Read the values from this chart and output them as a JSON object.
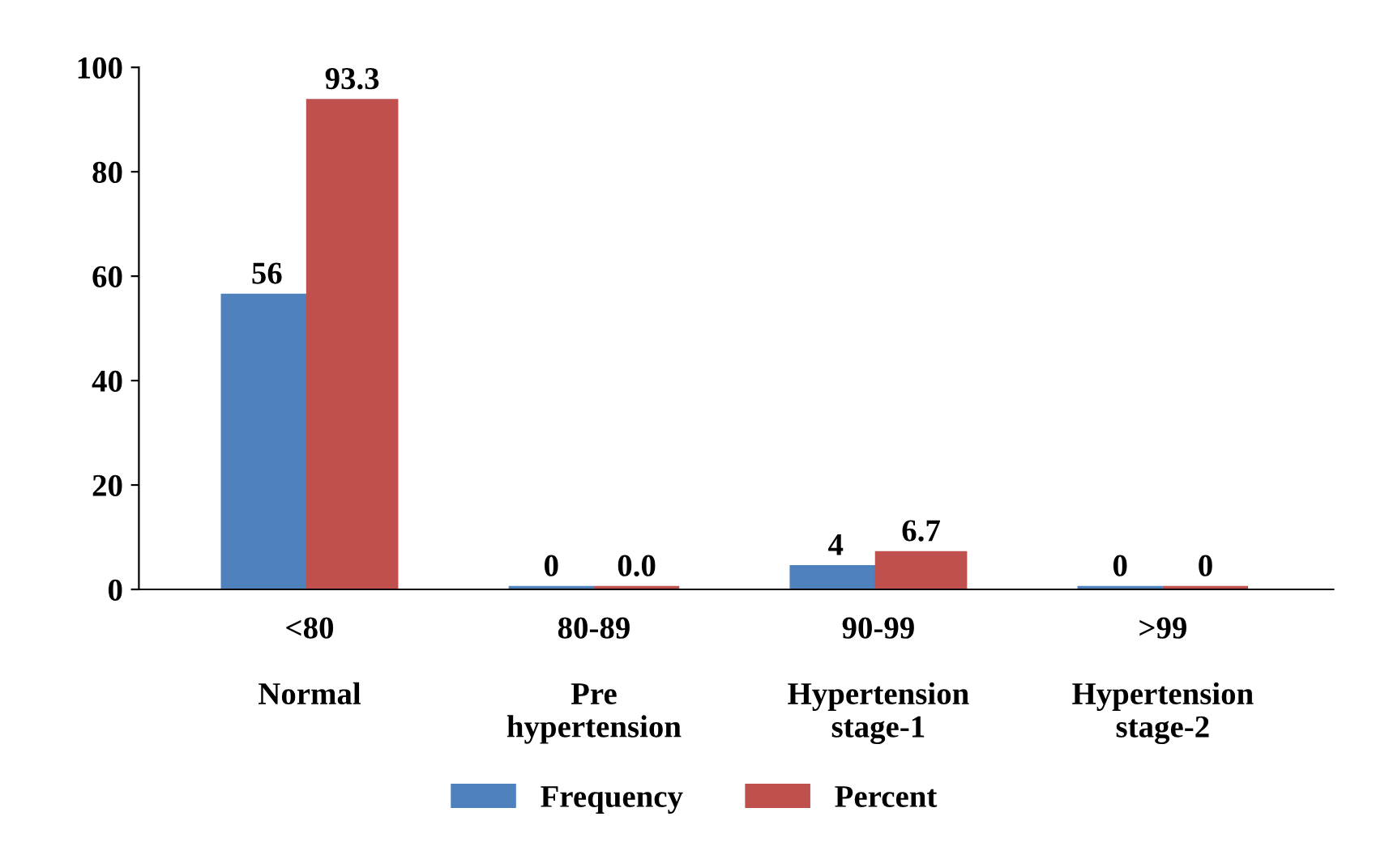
{
  "chart_data": {
    "type": "bar",
    "categories": [
      "<80\n\nNormal",
      "80-89\n\nPre\nhypertension",
      "90-99\n\nHypertension\nstage-1",
      ">99\n\nHypertension\nstage-2"
    ],
    "series": [
      {
        "name": "Frequency",
        "color": "#4f81bd",
        "values": [
          56,
          0,
          4,
          0
        ],
        "value_labels": [
          "56",
          "0",
          "4",
          "0"
        ]
      },
      {
        "name": "Percent",
        "color": "#c0504d",
        "values": [
          93.3,
          0.0,
          6.7,
          0
        ],
        "value_labels": [
          "93.3",
          "0.0",
          "6.7",
          "0"
        ]
      }
    ],
    "ylim": [
      0,
      100
    ],
    "yticks": [
      0,
      20,
      40,
      60,
      80,
      100
    ],
    "grid": false,
    "legend": "bottom"
  }
}
